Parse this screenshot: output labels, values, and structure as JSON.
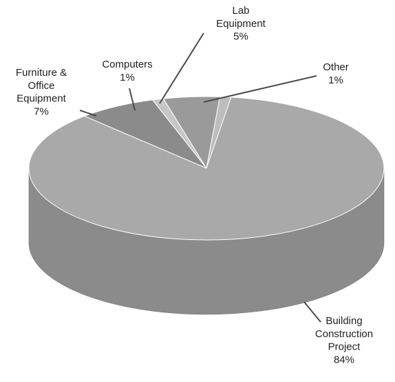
{
  "chart_data": {
    "type": "pie",
    "style": "3d",
    "slices": [
      {
        "name": "Building Construction Project",
        "label_lines": [
          "Building",
          "Construction",
          "Project"
        ],
        "percent_label": "84%",
        "value": 84,
        "color": "#a9a9a9"
      },
      {
        "name": "Furniture & Office Equipment",
        "label_lines": [
          "Furniture &",
          "Office",
          "Equipment"
        ],
        "percent_label": "7%",
        "value": 7,
        "color": "#8b8b8b"
      },
      {
        "name": "Computers",
        "label_lines": [
          "Computers"
        ],
        "percent_label": "1%",
        "value": 1,
        "color": "#c7c7c7"
      },
      {
        "name": "Lab Equipment",
        "label_lines": [
          "Lab",
          "Equipment"
        ],
        "percent_label": "5%",
        "value": 5,
        "color": "#9a9a9a"
      },
      {
        "name": "Other",
        "label_lines": [
          "Other"
        ],
        "percent_label": "1%",
        "value": 1,
        "color": "#bdbdbd"
      }
    ]
  }
}
